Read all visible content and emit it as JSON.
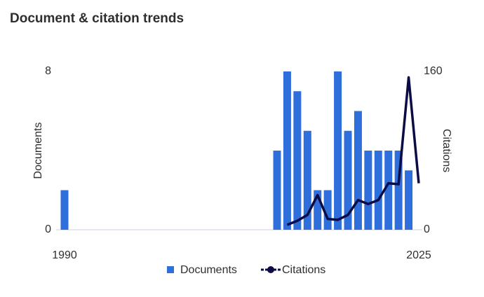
{
  "chart_data": {
    "type": "bar-line",
    "title": "Document & citation trends",
    "y_label": "Documents",
    "y2_label": "Citations",
    "xlim": [
      1990,
      2025
    ],
    "xticks": [
      1990,
      2025
    ],
    "ylim": [
      0,
      8
    ],
    "yticks": [
      0,
      8
    ],
    "y2lim": [
      0,
      160
    ],
    "y2ticks": [
      0,
      160
    ],
    "series": [
      {
        "name": "Documents",
        "type": "bar",
        "color": "#2e6fdc",
        "x": [
          1990,
          2011,
          2012,
          2013,
          2014,
          2015,
          2016,
          2017,
          2018,
          2019,
          2020,
          2021,
          2022,
          2023,
          2024
        ],
        "values": [
          2,
          4,
          8,
          7,
          5,
          2,
          2,
          8,
          5,
          6,
          4,
          4,
          4,
          4,
          3
        ]
      },
      {
        "name": "Citations",
        "type": "line",
        "axis": "y2",
        "color": "#0b0b45",
        "x": [
          2012,
          2013,
          2014,
          2015,
          2016,
          2017,
          2018,
          2019,
          2020,
          2021,
          2022,
          2023,
          2024,
          2025
        ],
        "values": [
          5,
          9,
          15,
          35,
          11,
          10,
          15,
          30,
          26,
          30,
          47,
          46,
          154,
          47
        ]
      }
    ]
  }
}
